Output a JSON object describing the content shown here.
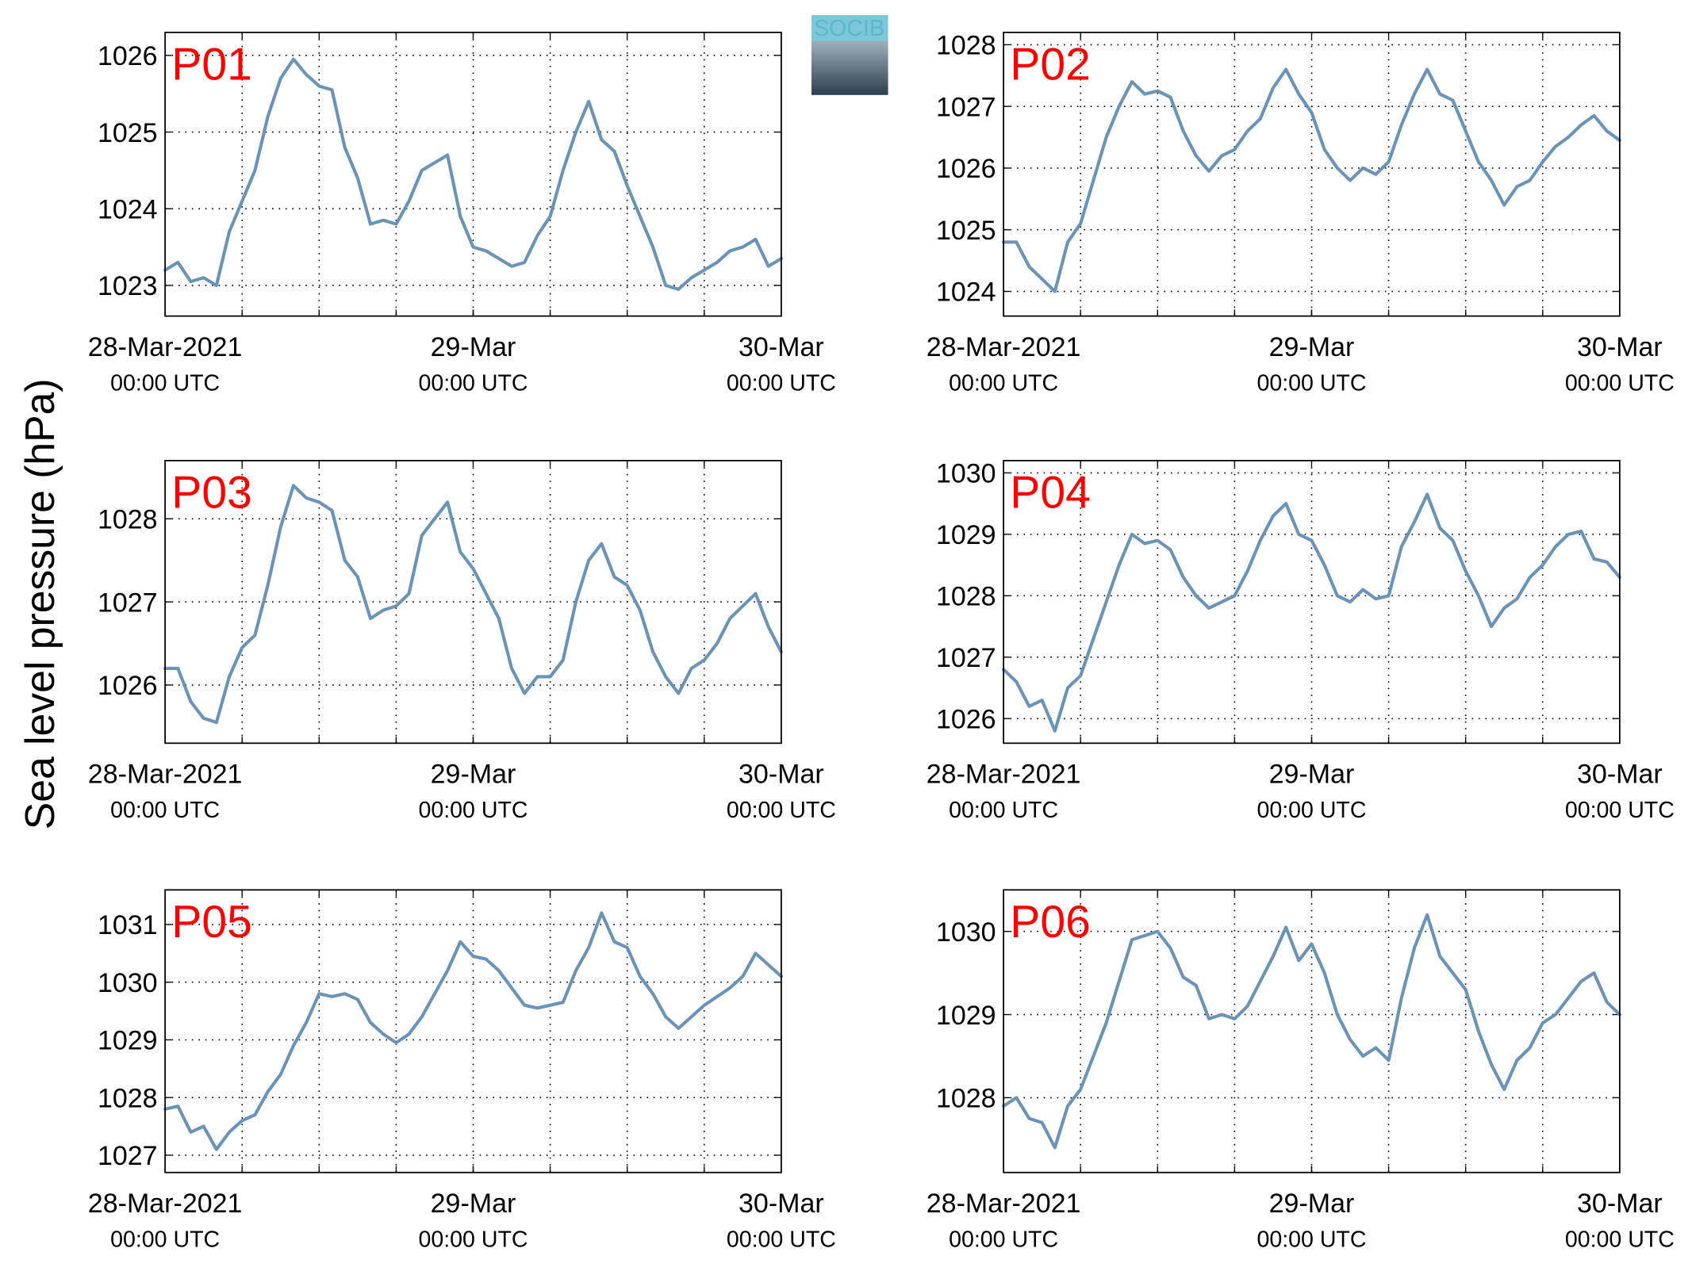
{
  "ylabel": "Sea level pressure (hPa)",
  "logo_text": "SOCIB",
  "chart_data": [
    {
      "type": "line",
      "title": "P01",
      "xlim": [
        0,
        48
      ],
      "ylim": [
        1022.6,
        1026.3
      ],
      "yticks": [
        1023,
        1024,
        1025,
        1026
      ],
      "grid": true,
      "xticks": [
        {
          "value": 0,
          "label": [
            "28-Mar-2021",
            "00:00 UTC"
          ]
        },
        {
          "value": 24,
          "label": [
            "29-Mar",
            "00:00 UTC"
          ]
        },
        {
          "value": 48,
          "label": [
            "30-Mar",
            "00:00 UTC"
          ]
        }
      ],
      "xgrid": [
        6,
        12,
        18,
        24,
        30,
        36,
        42
      ],
      "x": [
        0,
        1,
        2,
        3,
        4,
        5,
        6,
        7,
        8,
        9,
        10,
        11,
        12,
        13,
        14,
        15,
        16,
        17,
        18,
        19,
        20,
        21,
        22,
        23,
        24,
        25,
        26,
        27,
        28,
        29,
        30,
        31,
        32,
        33,
        34,
        35,
        36,
        37,
        38,
        39,
        40,
        41,
        42,
        43,
        44,
        45,
        46,
        47,
        48
      ],
      "series": [
        {
          "color": "#6b93b8",
          "values": [
            1023.2,
            1023.3,
            1023.05,
            1023.1,
            1023.0,
            1023.7,
            1024.1,
            1024.5,
            1025.2,
            1025.7,
            1025.95,
            1025.75,
            1025.6,
            1025.55,
            1024.8,
            1024.4,
            1023.8,
            1023.85,
            1023.8,
            1024.1,
            1024.5,
            1024.6,
            1024.7,
            1023.9,
            1023.5,
            1023.45,
            1023.35,
            1023.25,
            1023.3,
            1023.65,
            1023.9,
            1024.5,
            1025.0,
            1025.4,
            1024.9,
            1024.75,
            1024.3,
            1023.9,
            1023.5,
            1023.0,
            1022.95,
            1023.1,
            1023.2,
            1023.3,
            1023.45,
            1023.5,
            1023.6,
            1023.25,
            1023.35
          ]
        }
      ]
    },
    {
      "type": "line",
      "title": "P02",
      "xlim": [
        0,
        48
      ],
      "ylim": [
        1023.6,
        1028.2
      ],
      "yticks": [
        1024,
        1025,
        1026,
        1027,
        1028
      ],
      "grid": true,
      "xticks": [
        {
          "value": 0,
          "label": [
            "28-Mar-2021",
            "00:00 UTC"
          ]
        },
        {
          "value": 24,
          "label": [
            "29-Mar",
            "00:00 UTC"
          ]
        },
        {
          "value": 48,
          "label": [
            "30-Mar",
            "00:00 UTC"
          ]
        }
      ],
      "xgrid": [
        6,
        12,
        18,
        24,
        30,
        36,
        42
      ],
      "x": [
        0,
        1,
        2,
        3,
        4,
        5,
        6,
        7,
        8,
        9,
        10,
        11,
        12,
        13,
        14,
        15,
        16,
        17,
        18,
        19,
        20,
        21,
        22,
        23,
        24,
        25,
        26,
        27,
        28,
        29,
        30,
        31,
        32,
        33,
        34,
        35,
        36,
        37,
        38,
        39,
        40,
        41,
        42,
        43,
        44,
        45,
        46,
        47,
        48
      ],
      "series": [
        {
          "color": "#6b93b8",
          "values": [
            1024.8,
            1024.8,
            1024.4,
            1024.2,
            1024.0,
            1024.8,
            1025.1,
            1025.8,
            1026.5,
            1027.0,
            1027.4,
            1027.2,
            1027.25,
            1027.15,
            1026.6,
            1026.2,
            1025.95,
            1026.2,
            1026.3,
            1026.6,
            1026.8,
            1027.3,
            1027.6,
            1027.2,
            1026.9,
            1026.3,
            1026.0,
            1025.8,
            1026.0,
            1025.9,
            1026.1,
            1026.7,
            1027.2,
            1027.6,
            1027.2,
            1027.1,
            1026.6,
            1026.1,
            1025.8,
            1025.4,
            1025.7,
            1025.8,
            1026.1,
            1026.35,
            1026.5,
            1026.7,
            1026.85,
            1026.6,
            1026.45
          ]
        }
      ]
    },
    {
      "type": "line",
      "title": "P03",
      "xlim": [
        0,
        48
      ],
      "ylim": [
        1025.3,
        1028.7
      ],
      "yticks": [
        1026,
        1027,
        1028
      ],
      "grid": true,
      "xticks": [
        {
          "value": 0,
          "label": [
            "28-Mar-2021",
            "00:00 UTC"
          ]
        },
        {
          "value": 24,
          "label": [
            "29-Mar",
            "00:00 UTC"
          ]
        },
        {
          "value": 48,
          "label": [
            "30-Mar",
            "00:00 UTC"
          ]
        }
      ],
      "xgrid": [
        6,
        12,
        18,
        24,
        30,
        36,
        42
      ],
      "x": [
        0,
        1,
        2,
        3,
        4,
        5,
        6,
        7,
        8,
        9,
        10,
        11,
        12,
        13,
        14,
        15,
        16,
        17,
        18,
        19,
        20,
        21,
        22,
        23,
        24,
        25,
        26,
        27,
        28,
        29,
        30,
        31,
        32,
        33,
        34,
        35,
        36,
        37,
        38,
        39,
        40,
        41,
        42,
        43,
        44,
        45,
        46,
        47,
        48
      ],
      "series": [
        {
          "color": "#6b93b8",
          "values": [
            1026.2,
            1026.2,
            1025.8,
            1025.6,
            1025.55,
            1026.1,
            1026.45,
            1026.6,
            1027.2,
            1027.9,
            1028.4,
            1028.25,
            1028.2,
            1028.1,
            1027.5,
            1027.3,
            1026.8,
            1026.9,
            1026.95,
            1027.1,
            1027.8,
            1028.0,
            1028.2,
            1027.6,
            1027.4,
            1027.1,
            1026.8,
            1026.2,
            1025.9,
            1026.1,
            1026.1,
            1026.3,
            1027.0,
            1027.5,
            1027.7,
            1027.3,
            1027.2,
            1026.9,
            1026.4,
            1026.1,
            1025.9,
            1026.2,
            1026.3,
            1026.5,
            1026.8,
            1026.95,
            1027.1,
            1026.7,
            1026.4
          ]
        }
      ]
    },
    {
      "type": "line",
      "title": "P04",
      "xlim": [
        0,
        48
      ],
      "ylim": [
        1025.6,
        1030.2
      ],
      "yticks": [
        1026,
        1027,
        1028,
        1029,
        1030
      ],
      "grid": true,
      "xticks": [
        {
          "value": 0,
          "label": [
            "28-Mar-2021",
            "00:00 UTC"
          ]
        },
        {
          "value": 24,
          "label": [
            "29-Mar",
            "00:00 UTC"
          ]
        },
        {
          "value": 48,
          "label": [
            "30-Mar",
            "00:00 UTC"
          ]
        }
      ],
      "xgrid": [
        6,
        12,
        18,
        24,
        30,
        36,
        42
      ],
      "x": [
        0,
        1,
        2,
        3,
        4,
        5,
        6,
        7,
        8,
        9,
        10,
        11,
        12,
        13,
        14,
        15,
        16,
        17,
        18,
        19,
        20,
        21,
        22,
        23,
        24,
        25,
        26,
        27,
        28,
        29,
        30,
        31,
        32,
        33,
        34,
        35,
        36,
        37,
        38,
        39,
        40,
        41,
        42,
        43,
        44,
        45,
        46,
        47,
        48
      ],
      "series": [
        {
          "color": "#6b93b8",
          "values": [
            1026.8,
            1026.6,
            1026.2,
            1026.3,
            1025.8,
            1026.5,
            1026.7,
            1027.3,
            1027.9,
            1028.5,
            1029.0,
            1028.85,
            1028.9,
            1028.75,
            1028.3,
            1028.0,
            1027.8,
            1027.9,
            1028.0,
            1028.4,
            1028.9,
            1029.3,
            1029.5,
            1029.0,
            1028.9,
            1028.5,
            1028.0,
            1027.9,
            1028.1,
            1027.95,
            1028.0,
            1028.8,
            1029.2,
            1029.65,
            1029.1,
            1028.9,
            1028.4,
            1028.0,
            1027.5,
            1027.8,
            1027.95,
            1028.3,
            1028.5,
            1028.8,
            1029.0,
            1029.05,
            1028.6,
            1028.55,
            1028.3
          ]
        }
      ]
    },
    {
      "type": "line",
      "title": "P05",
      "xlim": [
        0,
        48
      ],
      "ylim": [
        1026.7,
        1031.6
      ],
      "yticks": [
        1027,
        1028,
        1029,
        1030,
        1031
      ],
      "grid": true,
      "xticks": [
        {
          "value": 0,
          "label": [
            "28-Mar-2021",
            "00:00 UTC"
          ]
        },
        {
          "value": 24,
          "label": [
            "29-Mar",
            "00:00 UTC"
          ]
        },
        {
          "value": 48,
          "label": [
            "30-Mar",
            "00:00 UTC"
          ]
        }
      ],
      "xgrid": [
        6,
        12,
        18,
        24,
        30,
        36,
        42
      ],
      "x": [
        0,
        1,
        2,
        3,
        4,
        5,
        6,
        7,
        8,
        9,
        10,
        11,
        12,
        13,
        14,
        15,
        16,
        17,
        18,
        19,
        20,
        21,
        22,
        23,
        24,
        25,
        26,
        27,
        28,
        29,
        30,
        31,
        32,
        33,
        34,
        35,
        36,
        37,
        38,
        39,
        40,
        41,
        42,
        43,
        44,
        45,
        46,
        47,
        48
      ],
      "series": [
        {
          "color": "#6b93b8",
          "values": [
            1027.8,
            1027.85,
            1027.4,
            1027.5,
            1027.1,
            1027.4,
            1027.6,
            1027.7,
            1028.1,
            1028.4,
            1028.9,
            1029.3,
            1029.8,
            1029.75,
            1029.8,
            1029.7,
            1029.3,
            1029.1,
            1028.95,
            1029.1,
            1029.4,
            1029.8,
            1030.2,
            1030.7,
            1030.45,
            1030.4,
            1030.2,
            1029.9,
            1029.6,
            1029.55,
            1029.6,
            1029.65,
            1030.2,
            1030.6,
            1031.2,
            1030.7,
            1030.6,
            1030.1,
            1029.8,
            1029.4,
            1029.2,
            1029.4,
            1029.6,
            1029.75,
            1029.9,
            1030.1,
            1030.5,
            1030.3,
            1030.1
          ]
        }
      ]
    },
    {
      "type": "line",
      "title": "P06",
      "xlim": [
        0,
        48
      ],
      "ylim": [
        1027.1,
        1030.5
      ],
      "yticks": [
        1028,
        1029,
        1030
      ],
      "grid": true,
      "xticks": [
        {
          "value": 0,
          "label": [
            "28-Mar-2021",
            "00:00 UTC"
          ]
        },
        {
          "value": 24,
          "label": [
            "29-Mar",
            "00:00 UTC"
          ]
        },
        {
          "value": 48,
          "label": [
            "30-Mar",
            "00:00 UTC"
          ]
        }
      ],
      "xgrid": [
        6,
        12,
        18,
        24,
        30,
        36,
        42
      ],
      "x": [
        0,
        1,
        2,
        3,
        4,
        5,
        6,
        7,
        8,
        9,
        10,
        11,
        12,
        13,
        14,
        15,
        16,
        17,
        18,
        19,
        20,
        21,
        22,
        23,
        24,
        25,
        26,
        27,
        28,
        29,
        30,
        31,
        32,
        33,
        34,
        35,
        36,
        37,
        38,
        39,
        40,
        41,
        42,
        43,
        44,
        45,
        46,
        47,
        48
      ],
      "series": [
        {
          "color": "#6b93b8",
          "values": [
            1027.9,
            1028.0,
            1027.75,
            1027.7,
            1027.4,
            1027.9,
            1028.1,
            1028.5,
            1028.9,
            1029.4,
            1029.9,
            1029.95,
            1030.0,
            1029.8,
            1029.45,
            1029.35,
            1028.95,
            1029.0,
            1028.95,
            1029.1,
            1029.4,
            1029.7,
            1030.05,
            1029.65,
            1029.85,
            1029.5,
            1029.0,
            1028.7,
            1028.5,
            1028.6,
            1028.45,
            1029.2,
            1029.8,
            1030.2,
            1029.7,
            1029.5,
            1029.3,
            1028.8,
            1028.4,
            1028.1,
            1028.45,
            1028.6,
            1028.9,
            1029.0,
            1029.2,
            1029.4,
            1029.5,
            1029.15,
            1029.0
          ]
        }
      ]
    }
  ]
}
